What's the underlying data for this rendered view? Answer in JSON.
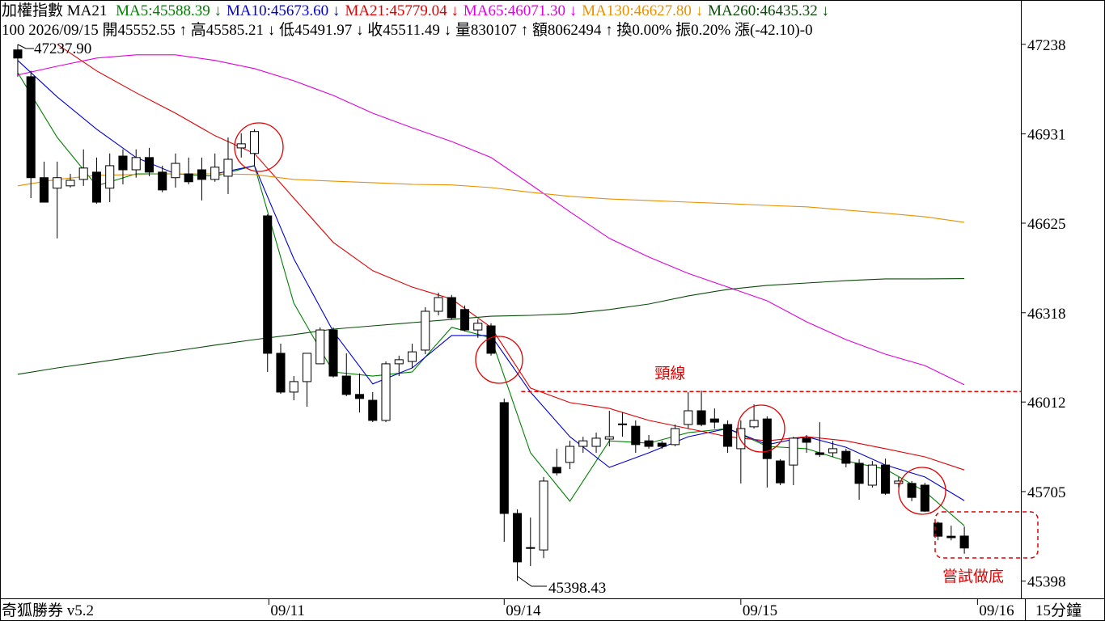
{
  "chart_data": {
    "type": "candlestick",
    "title": "加權指數 MA21",
    "info": "100 2026/09/15 開45552.55 ↑ 高45585.21 ↓ 低45491.97 ↓ 收45511.49 ↓ 量830107 ↑ 額8062494 ↑ 換0.00% 振0.20% 漲(-42.10)-0",
    "footer_left": "奇狐勝券 v5.2",
    "period": "15分鐘",
    "xlim": [
      -1.35,
      76.3
    ],
    "xticks": [
      {
        "value": 19.1,
        "label": "09/11"
      },
      {
        "value": 37,
        "label": "09/14"
      },
      {
        "value": 55,
        "label": "09/15"
      },
      {
        "value": 73,
        "label": "09/16"
      }
    ],
    "ylim": [
      45339,
      47390
    ],
    "yticks": [
      47238,
      46931,
      46625,
      46318,
      46012,
      45705,
      45398
    ],
    "up_color": "#ffffff",
    "down_color": "#000000",
    "open": [
      47219,
      47127,
      46781,
      46745,
      46753,
      46775,
      46800,
      46745,
      46855,
      46808,
      46850,
      46800,
      46781,
      46794,
      46808,
      46775,
      46786,
      46883,
      46864,
      46650,
      46179,
      46046,
      46082,
      46143,
      46259,
      46101,
      46038,
      46018,
      45949,
      46143,
      46151,
      46190,
      46323,
      46370,
      46329,
      46259,
      46273,
      46010,
      45630,
      45511,
      45505,
      45788,
      45805,
      45860,
      45860,
      45885,
      45935,
      45929,
      45879,
      45871,
      45866,
      45935,
      45982,
      45954,
      45935,
      45852,
      45927,
      45954,
      45810,
      45796,
      45888,
      45838,
      45838,
      45843,
      45802,
      45727,
      45796,
      45733,
      45733,
      45727,
      45597,
      45552,
      45552.55
    ],
    "high": [
      47237.9,
      47147,
      46836,
      46836,
      46794,
      46878,
      46850,
      46864,
      46878,
      46878,
      46883,
      46822,
      46864,
      46850,
      46850,
      46864,
      46919,
      46933,
      46947,
      46656,
      46212,
      46101,
      46179,
      46268,
      46268,
      46179,
      46110,
      46046,
      46151,
      46171,
      46212,
      46337,
      46387,
      46379,
      46343,
      46295,
      46282,
      46024,
      45644,
      45616,
      45755,
      45852,
      45879,
      45893,
      45907,
      45982,
      45976,
      45949,
      45899,
      45879,
      45935,
      46046,
      46051,
      45990,
      45949,
      45949,
      46004,
      45963,
      45816,
      45893,
      45899,
      45943,
      45879,
      45852,
      45816,
      45810,
      45818,
      45755,
      45741,
      45735,
      45602,
      45588,
      45585.21
    ],
    "low": [
      47127,
      46711,
      46697,
      46573,
      46747,
      46753,
      46692,
      46697,
      46758,
      46781,
      46786,
      46731,
      46747,
      46758,
      46703,
      46767,
      46725,
      46850,
      46822,
      46115,
      46040,
      46018,
      45996,
      46143,
      46096,
      46032,
      45976,
      45943,
      45943,
      46101,
      46129,
      46176,
      46309,
      46295,
      46254,
      46232,
      46171,
      45533,
      45398.43,
      45450,
      45477,
      45760,
      45782,
      45838,
      45838,
      45860,
      45893,
      45838,
      45852,
      45852,
      45860,
      45921,
      45929,
      45921,
      45838,
      45733,
      45921,
      45719,
      45727,
      45727,
      45838,
      45824,
      45824,
      45788,
      45677,
      45719,
      45694,
      45719,
      45672,
      45635,
      45538,
      45538,
      45491.97
    ],
    "close": [
      47191,
      46781,
      46697,
      46781,
      46772,
      46814,
      46697,
      46822,
      46808,
      46850,
      46800,
      46739,
      46830,
      46767,
      46775,
      46817,
      46844,
      46897,
      46939,
      46179,
      46046,
      46082,
      46179,
      46259,
      46101,
      46038,
      46024,
      45949,
      46143,
      46157,
      46184,
      46323,
      46370,
      46301,
      46259,
      46282,
      46179,
      45630,
      45464,
      45513,
      45741,
      45769,
      45860,
      45879,
      45888,
      45893,
      45937,
      45866,
      45860,
      45860,
      45921,
      45982,
      45935,
      45943,
      45860,
      45921,
      45949,
      45818,
      45735,
      45888,
      45874,
      45832,
      45852,
      45802,
      45733,
      45796,
      45699,
      45741,
      45685,
      45638,
      45552,
      45547,
      45511.49
    ],
    "series": [
      {
        "name": "MA5:45588.39 ↓",
        "color": "#008000",
        "x": [
          0,
          3,
          6,
          9,
          12,
          15,
          18,
          21,
          24,
          27,
          30,
          33,
          36,
          39,
          42,
          45,
          48,
          51,
          54,
          57,
          60,
          63,
          66,
          69,
          72
        ],
        "values": [
          47141,
          46919,
          46753,
          46794,
          46794,
          46786,
          46822,
          46351,
          46115,
          46101,
          46115,
          46268,
          46232,
          45838,
          45672,
          45879,
          45871,
          45907,
          45921,
          45860,
          45852,
          45810,
          45782,
          45705,
          45588
        ]
      },
      {
        "name": "MA10:45673.60 ↓",
        "color": "#0000d0",
        "x": [
          0,
          3,
          6,
          9,
          12,
          15,
          18,
          21,
          24,
          27,
          30,
          33,
          36,
          39,
          42,
          45,
          48,
          51,
          54,
          57,
          60,
          63,
          66,
          69,
          72
        ],
        "values": [
          47183,
          47058,
          46947,
          46850,
          46794,
          46794,
          46822,
          46503,
          46254,
          46074,
          46129,
          46240,
          46240,
          46046,
          45893,
          45788,
          45838,
          45893,
          45921,
          45866,
          45893,
          45857,
          45796,
          45755,
          45674
        ]
      },
      {
        "name": "MA21:45779.04 ↓",
        "color": "#e00000",
        "x": [
          0,
          3,
          6,
          9,
          12,
          15,
          18,
          21,
          24,
          27,
          30,
          33,
          36,
          39,
          42,
          45,
          48,
          51,
          54,
          57,
          60,
          63,
          66,
          69,
          72
        ],
        "values": [
          null,
          47238,
          47147,
          47072,
          47002,
          46925,
          46864,
          46711,
          46559,
          46462,
          46406,
          46365,
          46268,
          46060,
          46010,
          45990,
          45949,
          45921,
          45893,
          45879,
          45893,
          45879,
          45852,
          45824,
          45779
        ]
      },
      {
        "name": "MA65:46071.30 ↓",
        "color": "#e000e0",
        "x": [
          0,
          3,
          6,
          9,
          12,
          15,
          18,
          21,
          24,
          27,
          30,
          33,
          36,
          39,
          42,
          45,
          48,
          51,
          54,
          57,
          60,
          63,
          66,
          69,
          72
        ],
        "values": [
          47133,
          47163,
          47191,
          47202,
          47202,
          47183,
          47155,
          47113,
          47063,
          47002,
          46952,
          46905,
          46850,
          46758,
          46664,
          46573,
          46509,
          46453,
          46406,
          46359,
          46287,
          46226,
          46176,
          46137,
          46071
        ]
      },
      {
        "name": "MA130:46627.80 ↓",
        "color": "#e89000",
        "x": [
          0,
          3,
          6,
          9,
          12,
          15,
          18,
          21,
          24,
          27,
          30,
          33,
          36,
          39,
          42,
          45,
          48,
          51,
          54,
          57,
          60,
          63,
          66,
          69,
          72
        ],
        "values": [
          46753,
          46775,
          46789,
          46792,
          46794,
          46794,
          46792,
          46775,
          46769,
          46764,
          46758,
          46756,
          46747,
          46731,
          46717,
          46708,
          46703,
          46697,
          46692,
          46686,
          46681,
          46670,
          46659,
          46647,
          46628
        ]
      },
      {
        "name": "MA260:46435.32 ↓",
        "color": "#0a4a0a",
        "x": [
          0,
          3,
          6,
          9,
          12,
          15,
          18,
          21,
          24,
          27,
          30,
          33,
          36,
          39,
          42,
          45,
          48,
          51,
          54,
          57,
          60,
          63,
          66,
          69,
          72
        ],
        "values": [
          46107,
          46129,
          46148,
          46168,
          46187,
          46207,
          46226,
          46243,
          46262,
          46273,
          46284,
          46295,
          46306,
          46309,
          46315,
          46329,
          46348,
          46376,
          46398,
          46412,
          46420,
          46428,
          46434,
          46434,
          46435
        ]
      }
    ],
    "annotations": {
      "high": "47237.90",
      "low": "45398.43",
      "bottom_try": "嘗試做底"
    },
    "neckline": {
      "label": "頸線",
      "value": 46048,
      "x": [
        38.3,
        76.3
      ],
      "color": "#e00000"
    }
  }
}
